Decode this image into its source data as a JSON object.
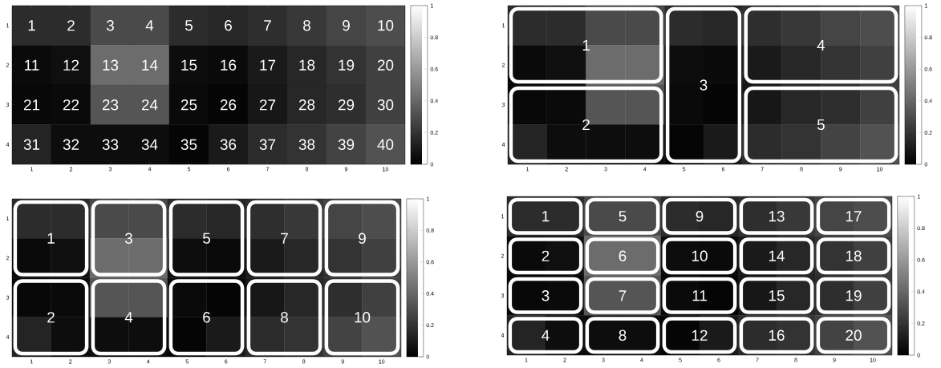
{
  "chart_data": [
    {
      "type": "heatmap",
      "categories": [
        "1",
        "2",
        "3",
        "4",
        "5",
        "6",
        "7",
        "8",
        "9",
        "10"
      ],
      "y_categories": [
        "1",
        "2",
        "3",
        "4"
      ],
      "cells": [
        [
          0.17,
          0.17,
          0.29,
          0.29,
          0.17,
          0.15,
          0.18,
          0.22,
          0.27,
          0.3
        ],
        [
          0.04,
          0.06,
          0.42,
          0.42,
          0.05,
          0.04,
          0.1,
          0.15,
          0.2,
          0.25
        ],
        [
          0.03,
          0.04,
          0.33,
          0.33,
          0.04,
          0.02,
          0.09,
          0.15,
          0.18,
          0.25
        ],
        [
          0.14,
          0.05,
          0.05,
          0.05,
          0.02,
          0.1,
          0.17,
          0.2,
          0.26,
          0.32
        ]
      ],
      "annotations": [
        "1",
        "2",
        "3",
        "4",
        "5",
        "6",
        "7",
        "8",
        "9",
        "10",
        "11",
        "12",
        "13",
        "14",
        "15",
        "16",
        "17",
        "18",
        "19",
        "20",
        "21",
        "22",
        "23",
        "24",
        "25",
        "26",
        "27",
        "28",
        "29",
        "30",
        "31",
        "32",
        "33",
        "34",
        "35",
        "36",
        "37",
        "38",
        "39",
        "40"
      ],
      "clim": [
        0,
        1
      ],
      "cticks": [
        0,
        0.2,
        0.4,
        0.6,
        0.8,
        1
      ]
    },
    {
      "type": "heatmap",
      "categories": [
        "1",
        "2",
        "3",
        "4",
        "5",
        "6",
        "7",
        "8",
        "9",
        "10"
      ],
      "y_categories": [
        "1",
        "2",
        "3",
        "4"
      ],
      "cells": [
        [
          0.17,
          0.17,
          0.29,
          0.29,
          0.17,
          0.15,
          0.18,
          0.22,
          0.27,
          0.3
        ],
        [
          0.04,
          0.06,
          0.42,
          0.42,
          0.05,
          0.04,
          0.1,
          0.15,
          0.2,
          0.25
        ],
        [
          0.03,
          0.04,
          0.33,
          0.33,
          0.04,
          0.02,
          0.09,
          0.15,
          0.18,
          0.25
        ],
        [
          0.14,
          0.05,
          0.05,
          0.05,
          0.02,
          0.1,
          0.17,
          0.2,
          0.26,
          0.32
        ]
      ],
      "annotations": [
        "1",
        "2",
        "3",
        "4",
        "5"
      ],
      "clim": [
        0,
        1
      ],
      "cticks": [
        0,
        0.2,
        0.4,
        0.6,
        0.8,
        1
      ]
    },
    {
      "type": "heatmap",
      "categories": [
        "1",
        "2",
        "3",
        "4",
        "5",
        "6",
        "7",
        "8",
        "9",
        "10"
      ],
      "y_categories": [
        "1",
        "2",
        "3",
        "4"
      ],
      "cells": [
        [
          0.17,
          0.17,
          0.29,
          0.29,
          0.17,
          0.15,
          0.18,
          0.22,
          0.27,
          0.3
        ],
        [
          0.04,
          0.06,
          0.42,
          0.42,
          0.05,
          0.04,
          0.1,
          0.15,
          0.2,
          0.25
        ],
        [
          0.03,
          0.04,
          0.33,
          0.33,
          0.04,
          0.02,
          0.09,
          0.15,
          0.18,
          0.25
        ],
        [
          0.14,
          0.05,
          0.05,
          0.05,
          0.02,
          0.1,
          0.17,
          0.2,
          0.26,
          0.32
        ]
      ],
      "annotations": [
        "1",
        "2",
        "3",
        "4",
        "5",
        "6",
        "7",
        "8",
        "9",
        "10"
      ],
      "clim": [
        0,
        1
      ],
      "cticks": [
        0,
        0.2,
        0.4,
        0.6,
        0.8,
        1
      ]
    },
    {
      "type": "heatmap",
      "categories": [
        "1",
        "2",
        "3",
        "4",
        "5",
        "6",
        "7",
        "8",
        "9",
        "10"
      ],
      "y_categories": [
        "1",
        "2",
        "3",
        "4"
      ],
      "cells": [
        [
          0.17,
          0.17,
          0.29,
          0.29,
          0.17,
          0.15,
          0.18,
          0.22,
          0.27,
          0.3
        ],
        [
          0.04,
          0.06,
          0.42,
          0.42,
          0.05,
          0.04,
          0.1,
          0.15,
          0.2,
          0.25
        ],
        [
          0.03,
          0.04,
          0.33,
          0.33,
          0.04,
          0.02,
          0.09,
          0.15,
          0.18,
          0.25
        ],
        [
          0.14,
          0.05,
          0.05,
          0.05,
          0.02,
          0.1,
          0.17,
          0.2,
          0.26,
          0.32
        ]
      ],
      "annotations": [
        "1",
        "2",
        "3",
        "4",
        "5",
        "6",
        "7",
        "8",
        "9",
        "10",
        "11",
        "12",
        "13",
        "14",
        "15",
        "16",
        "17",
        "18",
        "19",
        "20"
      ],
      "clim": [
        0,
        1
      ],
      "cticks": [
        0,
        0.2,
        0.4,
        0.6,
        0.8,
        1
      ]
    }
  ]
}
